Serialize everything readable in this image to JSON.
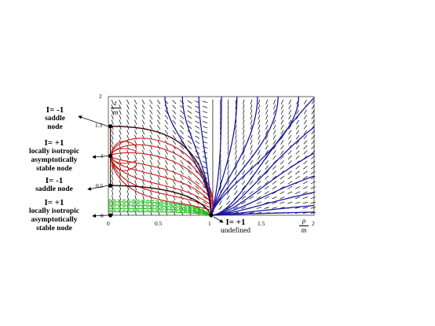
{
  "labels": {
    "saddle_top": {
      "line1": "I= -1",
      "line2": "saddle",
      "line3": "node"
    },
    "stable_mid": {
      "line1": "I= +1",
      "line2": "locally isotropic",
      "line3": "asymptotically",
      "line4": "stable node"
    },
    "saddle_low": {
      "line1": "I= -1",
      "line2": "saddle node"
    },
    "stable_bottom": {
      "line1": "I= +1",
      "line2": "locally isotropic",
      "line3": "asymptotically",
      "line4": "stable node"
    },
    "undefined_point": {
      "line1": "I= +1",
      "line2": "undefined"
    }
  },
  "axes": {
    "y_label_num": "z",
    "y_label_den": "m",
    "x_label_num": "ρ",
    "x_label_den": "m",
    "x_ticks": [
      "0",
      "0.5",
      "1",
      "1.5",
      "2"
    ],
    "y_ticks": [
      "0",
      "0.5",
      "1",
      "1.5",
      "2"
    ]
  },
  "colors": {
    "red_curves": "#cc1a1a",
    "blue_curves": "#1a1aa8",
    "green_curves": "#19c019",
    "dark_curves": "#3a0f0f",
    "field_marks": "#000000"
  }
}
